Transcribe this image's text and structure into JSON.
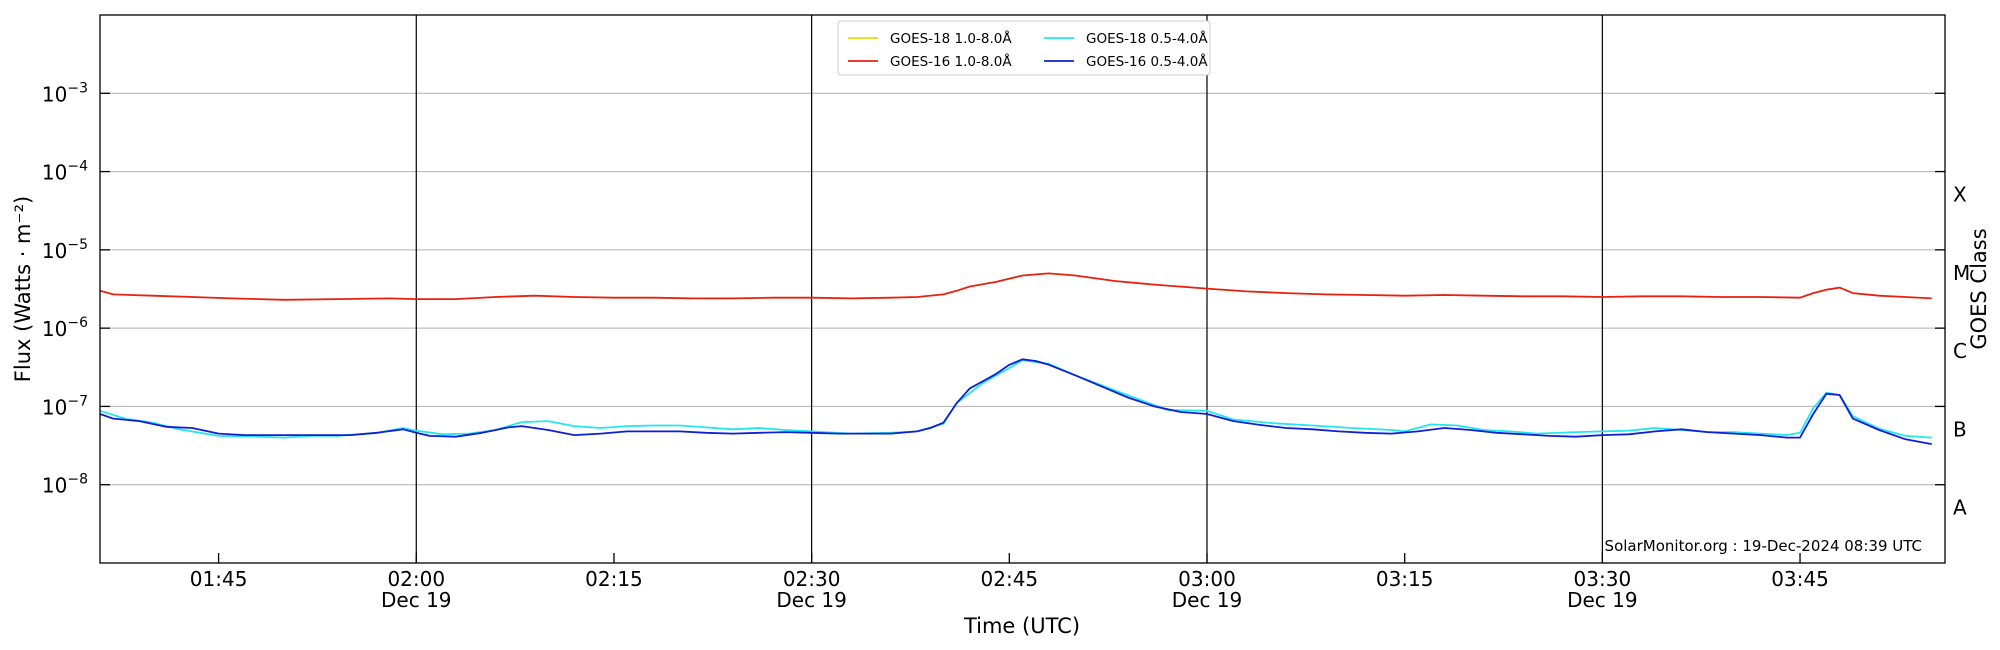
{
  "chart_data": {
    "type": "line",
    "ylabel": "Flux (Watts · m⁻²)",
    "xlabel": "Time (UTC)",
    "y_scale": "log",
    "ylim": [
      1e-09,
      0.01
    ],
    "xlim": [
      "01:36",
      "03:56"
    ],
    "grid": "horizontal-major",
    "legend_position": "top-center",
    "y_ticks": [
      {
        "label": "10",
        "exp": "−8",
        "value": 1e-08
      },
      {
        "label": "10",
        "exp": "−7",
        "value": 1e-07
      },
      {
        "label": "10",
        "exp": "−6",
        "value": 1e-06
      },
      {
        "label": "10",
        "exp": "−5",
        "value": 1e-05
      },
      {
        "label": "10",
        "exp": "−4",
        "value": 0.0001
      },
      {
        "label": "10",
        "exp": "−3",
        "value": 0.001
      }
    ],
    "x_ticks": [
      {
        "time": "01:45",
        "label": "01:45",
        "date": ""
      },
      {
        "time": "02:00",
        "label": "02:00",
        "date": "Dec 19"
      },
      {
        "time": "02:15",
        "label": "02:15",
        "date": ""
      },
      {
        "time": "02:30",
        "label": "02:30",
        "date": "Dec 19"
      },
      {
        "time": "02:45",
        "label": "02:45",
        "date": ""
      },
      {
        "time": "03:00",
        "label": "03:00",
        "date": "Dec 19"
      },
      {
        "time": "03:15",
        "label": "03:15",
        "date": ""
      },
      {
        "time": "03:30",
        "label": "03:30",
        "date": "Dec 19"
      },
      {
        "time": "03:45",
        "label": "03:45",
        "date": ""
      }
    ],
    "vlines": [
      "02:00",
      "02:30",
      "03:00",
      "03:30"
    ],
    "goes_classes": {
      "title": "GOES Class",
      "levels": [
        {
          "label": "A",
          "value": 1e-08
        },
        {
          "label": "B",
          "value": 1e-07
        },
        {
          "label": "C",
          "value": 1e-06
        },
        {
          "label": "M",
          "value": 1e-05
        },
        {
          "label": "X",
          "value": 0.0001
        }
      ]
    },
    "credit": "SolarMonitor.org : 19-Dec-2024 08:39 UTC",
    "series": [
      {
        "name": "GOES-18 1.0-8.0Å",
        "color": "#f5d90a",
        "x": [],
        "values": []
      },
      {
        "name": "GOES-18 0.5-4.0Å",
        "color": "#22e6f0",
        "x": [
          "01:36",
          "01:38",
          "01:40",
          "01:42",
          "01:45",
          "01:48",
          "01:50",
          "01:52",
          "01:54",
          "01:57",
          "01:59",
          "02:00",
          "02:02",
          "02:04",
          "02:06",
          "02:08",
          "02:10",
          "02:12",
          "02:14",
          "02:16",
          "02:18",
          "02:20",
          "02:22",
          "02:24",
          "02:26",
          "02:28",
          "02:30",
          "02:33",
          "02:36",
          "02:38",
          "02:40",
          "02:41",
          "02:43",
          "02:45",
          "02:46",
          "02:48",
          "02:50",
          "02:53",
          "02:55",
          "02:57",
          "03:00",
          "03:02",
          "03:05",
          "03:08",
          "03:11",
          "03:14",
          "03:15",
          "03:17",
          "03:19",
          "03:21",
          "03:23",
          "03:25",
          "03:28",
          "03:30",
          "03:32",
          "03:34",
          "03:36",
          "03:38",
          "03:40",
          "03:42",
          "03:44",
          "03:45",
          "03:46",
          "03:47",
          "03:48",
          "03:49",
          "03:51",
          "03:53",
          "03:55"
        ],
        "values": [
          8.8e-08,
          6.9e-08,
          6.2e-08,
          5.1e-08,
          4.2e-08,
          4.1e-08,
          4e-08,
          4.2e-08,
          4.2e-08,
          4.6e-08,
          5.3e-08,
          4.9e-08,
          4.4e-08,
          4.5e-08,
          5e-08,
          6.3e-08,
          6.5e-08,
          5.6e-08,
          5.3e-08,
          5.6e-08,
          5.7e-08,
          5.7e-08,
          5.4e-08,
          5.1e-08,
          5.3e-08,
          5e-08,
          4.8e-08,
          4.5e-08,
          4.6e-08,
          4.8e-08,
          6e-08,
          1.1e-07,
          2e-07,
          3.1e-07,
          3.9e-07,
          3.5e-07,
          2.5e-07,
          1.6e-07,
          1.2e-07,
          9e-08,
          8.8e-08,
          6.8e-08,
          6.1e-08,
          5.7e-08,
          5.3e-08,
          5e-08,
          4.8e-08,
          5.9e-08,
          5.7e-08,
          5e-08,
          4.8e-08,
          4.5e-08,
          4.7e-08,
          4.8e-08,
          4.9e-08,
          5.3e-08,
          5e-08,
          4.7e-08,
          4.7e-08,
          4.5e-08,
          4.3e-08,
          4.6e-08,
          9.5e-08,
          1.5e-07,
          1.4e-07,
          7.5e-08,
          5.2e-08,
          4.2e-08,
          4e-08
        ]
      },
      {
        "name": "GOES-16 1.0-8.0Å",
        "color": "#e8200e",
        "x": [
          "01:36",
          "01:37",
          "01:40",
          "01:43",
          "01:46",
          "01:50",
          "01:54",
          "01:58",
          "02:00",
          "02:03",
          "02:06",
          "02:09",
          "02:12",
          "02:15",
          "02:18",
          "02:21",
          "02:24",
          "02:27",
          "02:30",
          "02:33",
          "02:36",
          "02:38",
          "02:40",
          "02:41",
          "02:42",
          "02:44",
          "02:46",
          "02:48",
          "02:50",
          "02:53",
          "02:56",
          "02:59",
          "03:00",
          "03:03",
          "03:06",
          "03:09",
          "03:12",
          "03:15",
          "03:18",
          "03:21",
          "03:24",
          "03:27",
          "03:30",
          "03:33",
          "03:36",
          "03:39",
          "03:42",
          "03:45",
          "03:46",
          "03:47",
          "03:48",
          "03:49",
          "03:51",
          "03:53",
          "03:55"
        ],
        "values": [
          3e-06,
          2.7e-06,
          2.6e-06,
          2.5e-06,
          2.4e-06,
          2.3e-06,
          2.35e-06,
          2.4e-06,
          2.35e-06,
          2.35e-06,
          2.5e-06,
          2.6e-06,
          2.5e-06,
          2.45e-06,
          2.45e-06,
          2.4e-06,
          2.4e-06,
          2.45e-06,
          2.45e-06,
          2.4e-06,
          2.45e-06,
          2.5e-06,
          2.7e-06,
          3e-06,
          3.4e-06,
          3.9e-06,
          4.7e-06,
          5e-06,
          4.7e-06,
          4e-06,
          3.6e-06,
          3.3e-06,
          3.2e-06,
          2.95e-06,
          2.8e-06,
          2.7e-06,
          2.65e-06,
          2.6e-06,
          2.65e-06,
          2.6e-06,
          2.55e-06,
          2.55e-06,
          2.5e-06,
          2.55e-06,
          2.55e-06,
          2.5e-06,
          2.5e-06,
          2.45e-06,
          2.8e-06,
          3.1e-06,
          3.3e-06,
          2.8e-06,
          2.6e-06,
          2.5e-06,
          2.4e-06
        ]
      },
      {
        "name": "GOES-16 0.5-4.0Å",
        "color": "#0f1fd6",
        "x": [
          "01:36",
          "01:37",
          "01:39",
          "01:41",
          "01:43",
          "01:45",
          "01:47",
          "01:49",
          "01:51",
          "01:53",
          "01:55",
          "01:57",
          "01:59",
          "02:00",
          "02:01",
          "02:03",
          "02:05",
          "02:07",
          "02:08",
          "02:10",
          "02:12",
          "02:14",
          "02:16",
          "02:18",
          "02:20",
          "02:22",
          "02:24",
          "02:26",
          "02:28",
          "02:30",
          "02:32",
          "02:34",
          "02:36",
          "02:38",
          "02:39",
          "02:40",
          "02:41",
          "02:42",
          "02:44",
          "02:45",
          "02:46",
          "02:47",
          "02:48",
          "02:50",
          "02:52",
          "02:54",
          "02:56",
          "02:58",
          "03:00",
          "03:02",
          "03:04",
          "03:06",
          "03:08",
          "03:10",
          "03:12",
          "03:14",
          "03:16",
          "03:18",
          "03:20",
          "03:22",
          "03:24",
          "03:26",
          "03:28",
          "03:30",
          "03:32",
          "03:34",
          "03:36",
          "03:38",
          "03:40",
          "03:42",
          "03:44",
          "03:45",
          "03:46",
          "03:47",
          "03:48",
          "03:49",
          "03:51",
          "03:53",
          "03:55"
        ],
        "values": [
          8e-08,
          7e-08,
          6.5e-08,
          5.5e-08,
          5.3e-08,
          4.5e-08,
          4.3e-08,
          4.3e-08,
          4.3e-08,
          4.3e-08,
          4.3e-08,
          4.6e-08,
          5.1e-08,
          4.6e-08,
          4.2e-08,
          4.1e-08,
          4.6e-08,
          5.4e-08,
          5.6e-08,
          5e-08,
          4.3e-08,
          4.5e-08,
          4.8e-08,
          4.8e-08,
          4.8e-08,
          4.6e-08,
          4.5e-08,
          4.6e-08,
          4.7e-08,
          4.6e-08,
          4.5e-08,
          4.5e-08,
          4.5e-08,
          4.8e-08,
          5.3e-08,
          6.2e-08,
          1.1e-07,
          1.7e-07,
          2.6e-07,
          3.4e-07,
          4e-07,
          3.8e-07,
          3.4e-07,
          2.5e-07,
          1.8e-07,
          1.3e-07,
          1e-07,
          8.5e-08,
          8e-08,
          6.5e-08,
          5.8e-08,
          5.3e-08,
          5.1e-08,
          4.8e-08,
          4.6e-08,
          4.5e-08,
          4.8e-08,
          5.3e-08,
          5e-08,
          4.6e-08,
          4.4e-08,
          4.2e-08,
          4.1e-08,
          4.3e-08,
          4.4e-08,
          4.8e-08,
          5.1e-08,
          4.7e-08,
          4.5e-08,
          4.3e-08,
          4e-08,
          4e-08,
          8e-08,
          1.45e-07,
          1.4e-07,
          7e-08,
          5e-08,
          3.8e-08,
          3.3e-08
        ]
      }
    ]
  }
}
